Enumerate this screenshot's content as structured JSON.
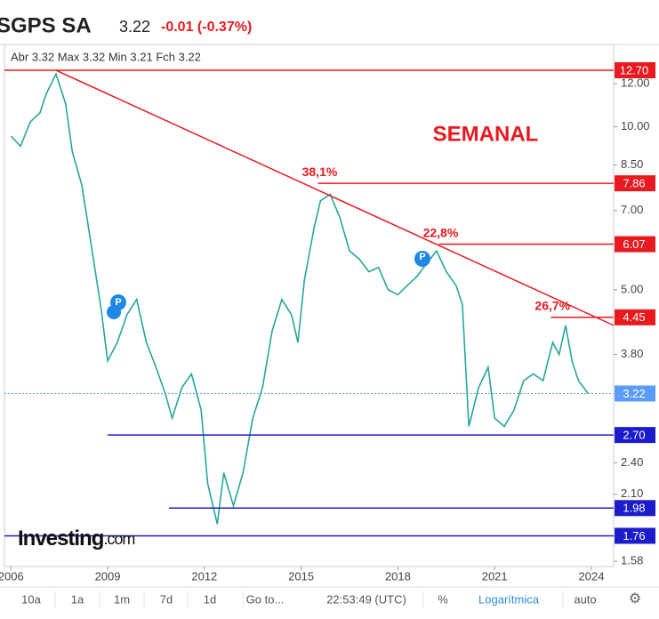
{
  "header": {
    "title": "SGPS SA",
    "price": "3.22",
    "change": "-0.01 (-0.37%)",
    "ohlc": "Abr 3.32 Max 3.32 Min 3.21 Fch 3.22"
  },
  "chart_data": {
    "type": "line",
    "annotation": "SEMANAL",
    "log_scale": true,
    "color": "#26a69a",
    "xlim": [
      2005.8,
      2024.69
    ],
    "xticks": [
      2006,
      2009,
      2012,
      2015,
      2018,
      2021,
      2024
    ],
    "ylim": [
      1.545,
      14.17
    ],
    "yticks": [
      {
        "value": 12,
        "label": "12.00"
      },
      {
        "value": 10,
        "label": "10.00"
      },
      {
        "value": 8.5,
        "label": "8.50"
      },
      {
        "value": 7,
        "label": "7.00"
      },
      {
        "value": 5,
        "label": "5.00"
      },
      {
        "value": 3.8,
        "label": "3.80"
      },
      {
        "value": 2.4,
        "label": "2.40"
      },
      {
        "value": 2.1,
        "label": "2.10"
      },
      1.58
    ],
    "x": [
      2006.0,
      2006.3,
      2006.6,
      2006.9,
      2007.1,
      2007.4,
      2007.7,
      2007.9,
      2008.2,
      2008.5,
      2008.8,
      2009.0,
      2009.3,
      2009.6,
      2009.9,
      2010.2,
      2010.5,
      2010.8,
      2011.0,
      2011.3,
      2011.6,
      2011.9,
      2012.1,
      2012.4,
      2012.6,
      2012.9,
      2013.2,
      2013.5,
      2013.8,
      2014.1,
      2014.4,
      2014.7,
      2014.9,
      2015.1,
      2015.4,
      2015.6,
      2015.9,
      2016.2,
      2016.5,
      2016.8,
      2017.1,
      2017.4,
      2017.7,
      2018.0,
      2018.3,
      2018.6,
      2018.9,
      2019.2,
      2019.5,
      2019.8,
      2020.0,
      2020.2,
      2020.5,
      2020.8,
      2021.0,
      2021.3,
      2021.6,
      2021.9,
      2022.2,
      2022.5,
      2022.8,
      2023.0,
      2023.2,
      2023.4,
      2023.6,
      2023.9
    ],
    "values": [
      9.6,
      9.2,
      10.2,
      10.6,
      11.5,
      12.5,
      11.0,
      9.0,
      7.8,
      6.0,
      4.6,
      3.7,
      4.0,
      4.5,
      4.8,
      4.0,
      3.6,
      3.2,
      2.9,
      3.3,
      3.5,
      3.0,
      2.2,
      1.85,
      2.3,
      2.0,
      2.3,
      2.9,
      3.3,
      4.2,
      4.8,
      4.5,
      4.0,
      5.2,
      6.5,
      7.3,
      7.5,
      6.8,
      5.9,
      5.7,
      5.4,
      5.5,
      5.0,
      4.9,
      5.1,
      5.3,
      5.6,
      5.9,
      5.4,
      5.1,
      4.7,
      2.8,
      3.3,
      3.6,
      2.9,
      2.8,
      3.0,
      3.4,
      3.5,
      3.4,
      4.0,
      3.8,
      4.3,
      3.7,
      3.4,
      3.22
    ],
    "trendline": {
      "x": [
        2007.4,
        2024.69
      ],
      "y": [
        12.7,
        4.3
      ],
      "color": "#e8191f"
    },
    "levels": [
      {
        "value": 12.7,
        "label": "12.70",
        "color": "#e8191f",
        "start": 2005.8
      },
      {
        "value": 7.86,
        "color": "#e8191f",
        "start": 2015.52,
        "note": "38,1%"
      },
      {
        "value": 6.07,
        "color": "#e8191f",
        "start": 2019.27,
        "note": "22,8%"
      },
      {
        "value": 4.45,
        "color": "#e8191f",
        "start": 2022.74,
        "note": "26,7%"
      },
      {
        "value": 3.22,
        "color": "#5b9cf6",
        "start": 2005.8,
        "dotted": true
      },
      {
        "value": 2.7,
        "label": "2.70",
        "color": "#1c1ccc",
        "start": 2009.0
      },
      {
        "value": 1.98,
        "color": "#1c1ccc",
        "start": 2010.9
      },
      {
        "value": 1.76,
        "color": "#1c1ccc",
        "start": 2005.8
      }
    ]
  },
  "logo": {
    "brand": "Investing",
    "suffix": ".com"
  },
  "toolbar": [
    "10a",
    "1a",
    "1m",
    "7d",
    "1d",
    "Go to...",
    "22:53:49 (UTC)",
    "%",
    "Logarítmica",
    "auto"
  ]
}
